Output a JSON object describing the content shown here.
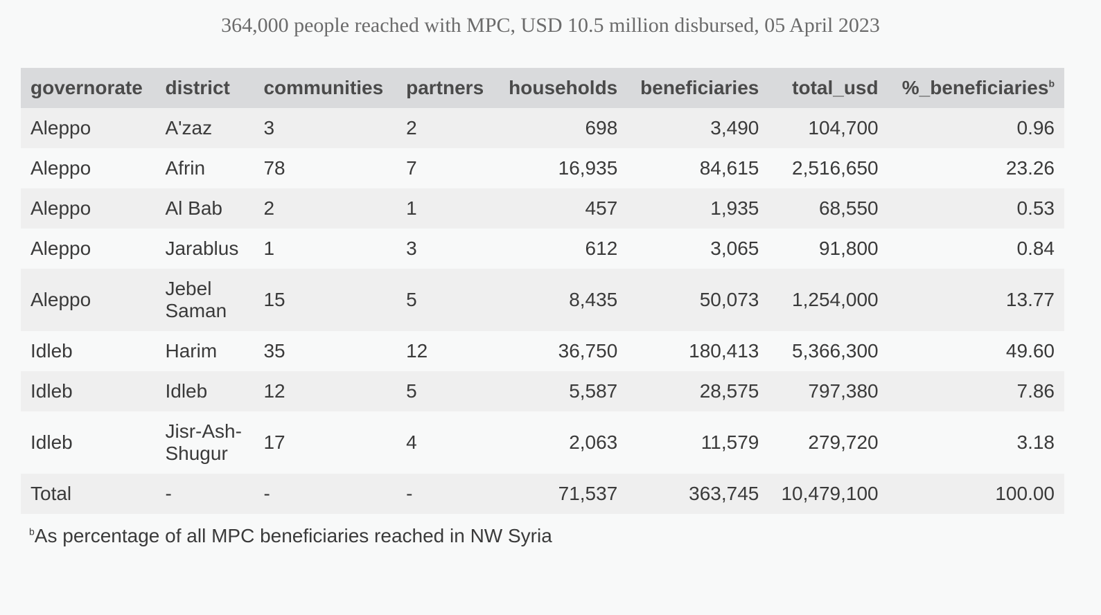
{
  "title": "364,000 people reached with MPC, USD 10.5 million disbursed, 05 April 2023",
  "chart_data": {
    "type": "table",
    "title": "364,000 people reached with MPC, USD 10.5 million disbursed, 05 April 2023",
    "columns": [
      "governorate",
      "district",
      "communities",
      "partners",
      "households",
      "beneficiaries",
      "total_usd",
      "%_beneficiaries"
    ],
    "column_superscript": {
      "%_beneficiaries": "b"
    },
    "rows": [
      [
        "Aleppo",
        "A'zaz",
        "3",
        "2",
        "698",
        "3,490",
        "104,700",
        "0.96"
      ],
      [
        "Aleppo",
        "Afrin",
        "78",
        "7",
        "16,935",
        "84,615",
        "2,516,650",
        "23.26"
      ],
      [
        "Aleppo",
        "Al Bab",
        "2",
        "1",
        "457",
        "1,935",
        "68,550",
        "0.53"
      ],
      [
        "Aleppo",
        "Jarablus",
        "1",
        "3",
        "612",
        "3,065",
        "91,800",
        "0.84"
      ],
      [
        "Aleppo",
        "Jebel Saman",
        "15",
        "5",
        "8,435",
        "50,073",
        "1,254,000",
        "13.77"
      ],
      [
        "Idleb",
        "Harim",
        "35",
        "12",
        "36,750",
        "180,413",
        "5,366,300",
        "49.60"
      ],
      [
        "Idleb",
        "Idleb",
        "12",
        "5",
        "5,587",
        "28,575",
        "797,380",
        "7.86"
      ],
      [
        "Idleb",
        "Jisr-Ash-Shugur",
        "17",
        "4",
        "2,063",
        "11,579",
        "279,720",
        "3.18"
      ],
      [
        "Total",
        "-",
        "-",
        "-",
        "71,537",
        "363,745",
        "10,479,100",
        "100.00"
      ]
    ],
    "footnote_mark": "b",
    "footnote": "As percentage of all MPC beneficiaries reached in NW Syria"
  }
}
